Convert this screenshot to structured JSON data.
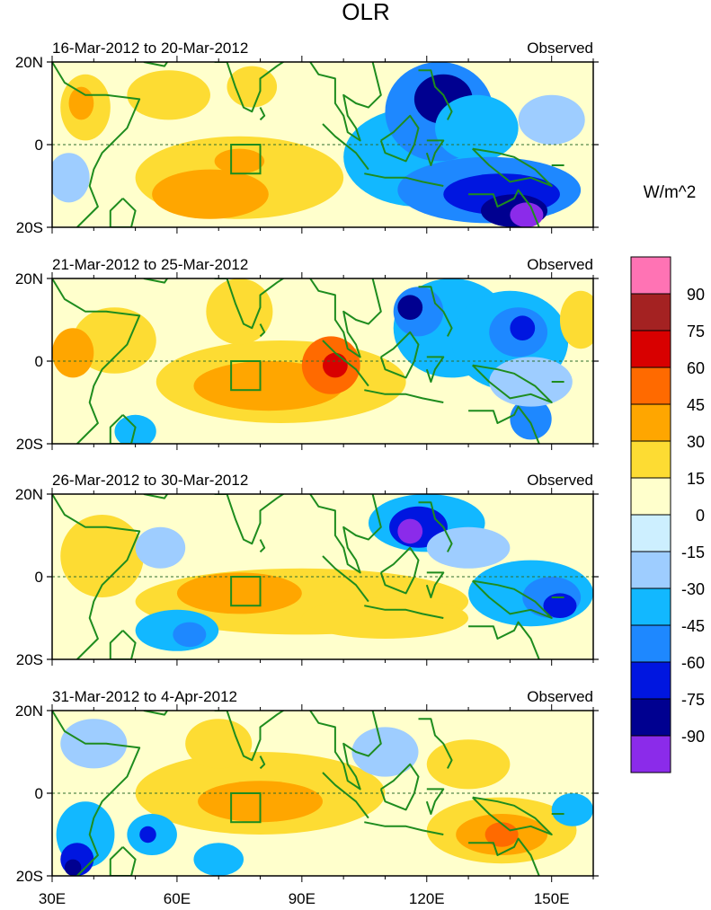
{
  "title": "OLR",
  "unit_label": "W/m^2",
  "lat_labels": [
    "20N",
    "0",
    "20S"
  ],
  "lon_labels": [
    "30E",
    "60E",
    "90E",
    "120E",
    "150E"
  ],
  "panels": [
    {
      "period": "16-Mar-2012 to 20-Mar-2012",
      "tag": "Observed",
      "features": [
        {
          "lon": 118,
          "lat": -3,
          "rx": 18,
          "ry": 12,
          "v": -30
        },
        {
          "lon": 123,
          "lat": 8,
          "rx": 13,
          "ry": 12,
          "v": -45
        },
        {
          "lon": 124,
          "lat": 11,
          "rx": 7,
          "ry": 6,
          "v": -75
        },
        {
          "lon": 132,
          "lat": 4,
          "rx": 10,
          "ry": 8,
          "v": -30
        },
        {
          "lon": 135,
          "lat": -11,
          "rx": 22,
          "ry": 8,
          "v": -45
        },
        {
          "lon": 138,
          "lat": -12,
          "rx": 14,
          "ry": 5,
          "v": -60
        },
        {
          "lon": 141,
          "lat": -16,
          "rx": 8,
          "ry": 4,
          "v": -75
        },
        {
          "lon": 144,
          "lat": -17,
          "rx": 4,
          "ry": 3,
          "v": -90
        },
        {
          "lon": 150,
          "lat": 6,
          "rx": 8,
          "ry": 6,
          "v": -15
        },
        {
          "lon": 75,
          "lat": -8,
          "rx": 25,
          "ry": 10,
          "v": 15
        },
        {
          "lon": 68,
          "lat": -12,
          "rx": 14,
          "ry": 6,
          "v": 30
        },
        {
          "lon": 75,
          "lat": -4,
          "rx": 6,
          "ry": 3,
          "v": 30
        },
        {
          "lon": 38,
          "lat": 9,
          "rx": 6,
          "ry": 8,
          "v": 15
        },
        {
          "lon": 37,
          "lat": 10,
          "rx": 3,
          "ry": 4,
          "v": 30
        },
        {
          "lon": 58,
          "lat": 12,
          "rx": 10,
          "ry": 6,
          "v": 15
        },
        {
          "lon": 34,
          "lat": -8,
          "rx": 5,
          "ry": 6,
          "v": -15
        },
        {
          "lon": 78,
          "lat": 14,
          "rx": 6,
          "ry": 5,
          "v": 15
        }
      ]
    },
    {
      "period": "21-Mar-2012 to 25-Mar-2012",
      "tag": "Observed",
      "features": [
        {
          "lon": 85,
          "lat": -5,
          "rx": 30,
          "ry": 10,
          "v": 15
        },
        {
          "lon": 82,
          "lat": -6,
          "rx": 18,
          "ry": 6,
          "v": 30
        },
        {
          "lon": 97,
          "lat": -1,
          "rx": 7,
          "ry": 7,
          "v": 45
        },
        {
          "lon": 98,
          "lat": -1,
          "rx": 3,
          "ry": 3,
          "v": 60
        },
        {
          "lon": 75,
          "lat": 12,
          "rx": 8,
          "ry": 8,
          "v": 15
        },
        {
          "lon": 45,
          "lat": 5,
          "rx": 10,
          "ry": 8,
          "v": 15
        },
        {
          "lon": 35,
          "lat": 2,
          "rx": 5,
          "ry": 6,
          "v": 30
        },
        {
          "lon": 126,
          "lat": 8,
          "rx": 14,
          "ry": 12,
          "v": -30
        },
        {
          "lon": 118,
          "lat": 12,
          "rx": 6,
          "ry": 6,
          "v": -45
        },
        {
          "lon": 116,
          "lat": 13,
          "rx": 3,
          "ry": 3,
          "v": -75
        },
        {
          "lon": 140,
          "lat": 5,
          "rx": 14,
          "ry": 12,
          "v": -30
        },
        {
          "lon": 142,
          "lat": 7,
          "rx": 7,
          "ry": 6,
          "v": -45
        },
        {
          "lon": 143,
          "lat": 8,
          "rx": 3,
          "ry": 3,
          "v": -60
        },
        {
          "lon": 145,
          "lat": -14,
          "rx": 5,
          "ry": 5,
          "v": -45
        },
        {
          "lon": 50,
          "lat": -17,
          "rx": 5,
          "ry": 4,
          "v": -30
        },
        {
          "lon": 145,
          "lat": -5,
          "rx": 10,
          "ry": 6,
          "v": -15
        },
        {
          "lon": 157,
          "lat": 10,
          "rx": 5,
          "ry": 7,
          "v": 15
        }
      ]
    },
    {
      "period": "26-Mar-2012 to 30-Mar-2012",
      "tag": "Observed",
      "features": [
        {
          "lon": 90,
          "lat": -6,
          "rx": 40,
          "ry": 8,
          "v": 15
        },
        {
          "lon": 75,
          "lat": -4,
          "rx": 15,
          "ry": 5,
          "v": 30
        },
        {
          "lon": 110,
          "lat": -10,
          "rx": 20,
          "ry": 5,
          "v": 15
        },
        {
          "lon": 42,
          "lat": 5,
          "rx": 10,
          "ry": 10,
          "v": 15
        },
        {
          "lon": 120,
          "lat": 13,
          "rx": 14,
          "ry": 7,
          "v": -30
        },
        {
          "lon": 118,
          "lat": 12,
          "rx": 7,
          "ry": 5,
          "v": -60
        },
        {
          "lon": 116,
          "lat": 11,
          "rx": 3,
          "ry": 3,
          "v": -90
        },
        {
          "lon": 145,
          "lat": -4,
          "rx": 15,
          "ry": 8,
          "v": -30
        },
        {
          "lon": 150,
          "lat": -5,
          "rx": 7,
          "ry": 5,
          "v": -45
        },
        {
          "lon": 152,
          "lat": -7,
          "rx": 4,
          "ry": 3,
          "v": -60
        },
        {
          "lon": 60,
          "lat": -13,
          "rx": 10,
          "ry": 5,
          "v": -30
        },
        {
          "lon": 63,
          "lat": -14,
          "rx": 4,
          "ry": 3,
          "v": -45
        },
        {
          "lon": 56,
          "lat": 7,
          "rx": 6,
          "ry": 5,
          "v": -15
        },
        {
          "lon": 130,
          "lat": 7,
          "rx": 10,
          "ry": 5,
          "v": -15
        }
      ]
    },
    {
      "period": "31-Mar-2012 to 4-Apr-2012",
      "tag": "Observed",
      "features": [
        {
          "lon": 80,
          "lat": 0,
          "rx": 30,
          "ry": 10,
          "v": 15
        },
        {
          "lon": 80,
          "lat": -2,
          "rx": 15,
          "ry": 5,
          "v": 30
        },
        {
          "lon": 138,
          "lat": -9,
          "rx": 18,
          "ry": 8,
          "v": 15
        },
        {
          "lon": 138,
          "lat": -10,
          "rx": 11,
          "ry": 5,
          "v": 30
        },
        {
          "lon": 138,
          "lat": -10,
          "rx": 4,
          "ry": 3,
          "v": 45
        },
        {
          "lon": 130,
          "lat": 7,
          "rx": 10,
          "ry": 6,
          "v": 15
        },
        {
          "lon": 70,
          "lat": 12,
          "rx": 8,
          "ry": 6,
          "v": 15
        },
        {
          "lon": 38,
          "lat": -10,
          "rx": 7,
          "ry": 8,
          "v": -30
        },
        {
          "lon": 36,
          "lat": -16,
          "rx": 4,
          "ry": 4,
          "v": -60
        },
        {
          "lon": 35,
          "lat": -18,
          "rx": 2,
          "ry": 2,
          "v": -75
        },
        {
          "lon": 54,
          "lat": -10,
          "rx": 6,
          "ry": 5,
          "v": -30
        },
        {
          "lon": 53,
          "lat": -10,
          "rx": 2,
          "ry": 2,
          "v": -60
        },
        {
          "lon": 70,
          "lat": -16,
          "rx": 6,
          "ry": 4,
          "v": -30
        },
        {
          "lon": 155,
          "lat": -4,
          "rx": 5,
          "ry": 4,
          "v": -30
        },
        {
          "lon": 110,
          "lat": 10,
          "rx": 8,
          "ry": 6,
          "v": -15
        },
        {
          "lon": 40,
          "lat": 12,
          "rx": 8,
          "ry": 6,
          "v": -15
        }
      ]
    }
  ],
  "colorbar": {
    "levels": [
      "90",
      "75",
      "60",
      "45",
      "30",
      "15",
      "0",
      "-15",
      "-30",
      "-45",
      "-60",
      "-75",
      "-90"
    ],
    "colors": [
      "#ff73b4",
      "#a42222",
      "#d80000",
      "#ff6a00",
      "#ffa600",
      "#fddc33",
      "#ffffcc",
      "#cdefff",
      "#9ecdff",
      "#12b8ff",
      "#1e88ff",
      "#0016e0",
      "#000090",
      "#8b2bea"
    ]
  },
  "land_color": "#1e8c1e",
  "box_region": {
    "lon_min": 73,
    "lon_max": 80,
    "lat_min": -7,
    "lat_max": 0
  }
}
